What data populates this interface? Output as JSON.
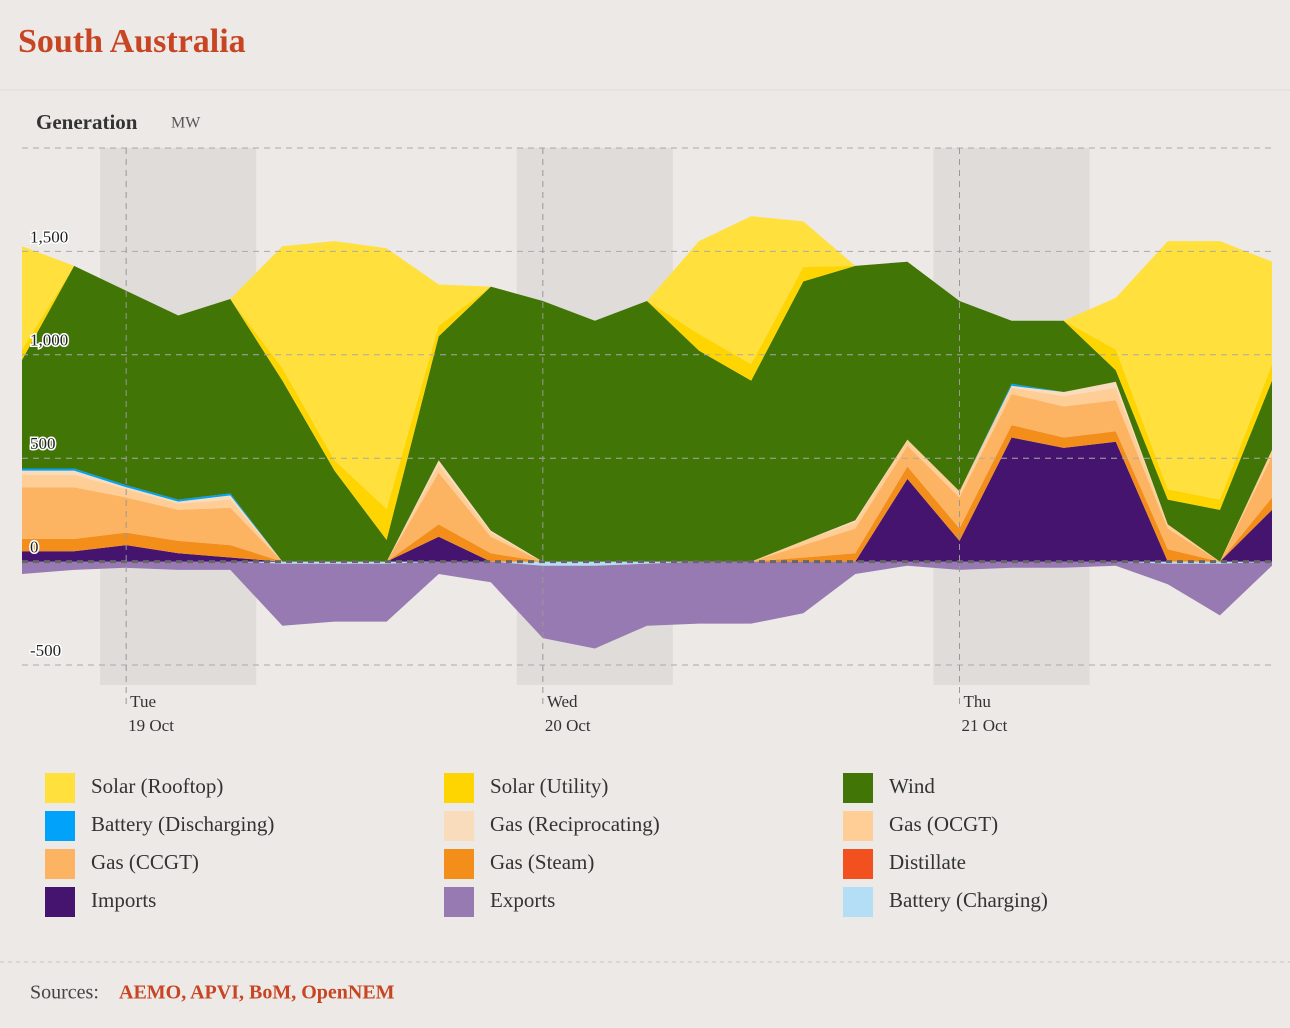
{
  "chart_data": {
    "type": "stacked-area",
    "title": "South Australia",
    "y_label": "Generation",
    "y_unit": "MW",
    "categories": [
      null,
      null,
      {
        "day": "Tue",
        "date": "19 Oct"
      },
      null,
      null,
      null,
      null,
      null,
      null,
      null,
      {
        "day": "Wed",
        "date": "20 Oct"
      },
      null,
      null,
      null,
      null,
      null,
      null,
      null,
      {
        "day": "Thu",
        "date": "21 Oct"
      },
      null,
      null,
      null,
      null,
      null,
      null
    ],
    "ylim": [
      -500,
      2000
    ],
    "yticks": [
      -500,
      0,
      500,
      {
        "value": 1000,
        "label": "1,000"
      },
      {
        "value": 1500,
        "label": "1,500"
      }
    ],
    "grid": true,
    "series": [
      {
        "name": "Solar (Rooftop)",
        "color": "#ffe03d",
        "values": [
          500,
          0,
          0,
          0,
          0,
          590,
          1060,
          1260,
          200,
          0,
          0,
          0,
          0,
          450,
          715,
          220,
          0,
          0,
          0,
          0,
          0,
          250,
          1200,
          1250,
          495
        ]
      },
      {
        "name": "Solar (Utility)",
        "color": "#fed500",
        "values": [
          50,
          0,
          0,
          0,
          0,
          60,
          50,
          150,
          50,
          0,
          0,
          0,
          0,
          80,
          80,
          70,
          0,
          0,
          0,
          0,
          0,
          100,
          50,
          50,
          80
        ]
      },
      {
        "name": "Wind",
        "color": "#417505",
        "values": [
          525,
          980,
          940,
          890,
          940,
          875,
          440,
          105,
          600,
          1180,
          1260,
          1165,
          1260,
          1020,
          875,
          1255,
          1230,
          860,
          920,
          305,
          345,
          55,
          120,
          250,
          335
        ]
      },
      {
        "name": "Battery (Discharging)",
        "color": "#00a2fa",
        "values": [
          10,
          10,
          10,
          10,
          10,
          0,
          0,
          0,
          0,
          0,
          0,
          0,
          0,
          0,
          0,
          0,
          0,
          0,
          0,
          10,
          0,
          0,
          0,
          0,
          0
        ]
      },
      {
        "name": "Gas (Reciprocating)",
        "color": "#f9dcbc",
        "values": [
          20,
          20,
          10,
          10,
          20,
          0,
          0,
          0,
          20,
          10,
          0,
          0,
          0,
          0,
          0,
          0,
          10,
          0,
          0,
          10,
          20,
          30,
          0,
          0,
          0
        ]
      },
      {
        "name": "Gas (OCGT)",
        "color": "#ffcd96",
        "values": [
          60,
          60,
          40,
          30,
          40,
          0,
          0,
          0,
          40,
          20,
          0,
          0,
          0,
          0,
          0,
          20,
          30,
          30,
          30,
          30,
          50,
          60,
          20,
          0,
          30
        ]
      },
      {
        "name": "Gas (CCGT)",
        "color": "#fdb462",
        "values": [
          250,
          250,
          170,
          150,
          180,
          0,
          0,
          0,
          250,
          80,
          0,
          0,
          0,
          0,
          0,
          60,
          120,
          100,
          150,
          150,
          150,
          150,
          100,
          0,
          200
        ]
      },
      {
        "name": "Gas (Steam)",
        "color": "#f48e1b",
        "values": [
          60,
          60,
          60,
          60,
          60,
          0,
          0,
          0,
          60,
          40,
          0,
          0,
          0,
          0,
          0,
          20,
          40,
          60,
          60,
          60,
          50,
          50,
          60,
          0,
          60
        ]
      },
      {
        "name": "Distillate",
        "color": "#f35020",
        "values": [
          0,
          0,
          0,
          0,
          0,
          0,
          0,
          0,
          0,
          0,
          0,
          0,
          0,
          0,
          0,
          0,
          0,
          0,
          0,
          0,
          0,
          0,
          0,
          0,
          0
        ]
      },
      {
        "name": "Imports",
        "color": "#44146f",
        "values": [
          50,
          50,
          80,
          40,
          20,
          0,
          0,
          0,
          120,
          0,
          0,
          0,
          0,
          0,
          0,
          0,
          0,
          400,
          100,
          600,
          550,
          580,
          0,
          0,
          250
        ]
      },
      {
        "name": "Exports",
        "color": "#977ab1",
        "values": [
          -60,
          -40,
          -30,
          -40,
          -40,
          -300,
          -280,
          -280,
          -60,
          -100,
          -350,
          -400,
          -300,
          -300,
          -300,
          -250,
          -60,
          -20,
          -40,
          -30,
          -30,
          -20,
          -100,
          -250,
          -20
        ]
      },
      {
        "name": "Battery (Charging)",
        "color": "#b3def5",
        "values": [
          0,
          0,
          0,
          0,
          0,
          -10,
          -10,
          -10,
          0,
          0,
          -20,
          -20,
          -10,
          0,
          0,
          0,
          0,
          0,
          0,
          0,
          0,
          0,
          -10,
          -10,
          0
        ]
      }
    ],
    "sources_label": "Sources:",
    "sources": "AEMO, APVI, BoM, OpenNEM"
  }
}
